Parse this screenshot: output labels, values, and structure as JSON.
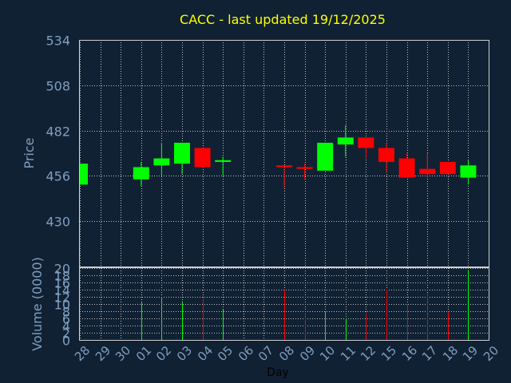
{
  "chart_data": {
    "type": "candlestick",
    "title": "CACC - last updated 19/12/2025",
    "ylabel_price": "Price",
    "ylabel_volume": "Volume (0000)",
    "xlabel": "Day",
    "price_ylim": [
      404,
      534
    ],
    "price_ticks": [
      "534",
      "508",
      "482",
      "456",
      "430"
    ],
    "price_tick_values": [
      534,
      508,
      482,
      456,
      430
    ],
    "volume_ylim": [
      0,
      20
    ],
    "volume_ticks": [
      "20",
      "18",
      "16",
      "14",
      "12",
      "10",
      "8",
      "6",
      "4",
      "2",
      "0"
    ],
    "volume_tick_values": [
      20,
      18,
      16,
      14,
      12,
      10,
      8,
      6,
      4,
      2,
      0
    ],
    "x_labels": [
      "28",
      "29",
      "30",
      "01",
      "02",
      "03",
      "04",
      "05",
      "06",
      "07",
      "08",
      "09",
      "10",
      "11",
      "12",
      "15",
      "16",
      "17",
      "18",
      "19",
      "20"
    ],
    "colors": {
      "background": "#102133",
      "up": "#00ff00",
      "down": "#ff0000",
      "title": "#ffff00",
      "axis_text": "#7f9fbf",
      "grid": "#c0c0c0"
    },
    "candles": [
      {
        "day": "28",
        "open": 451,
        "close": 463,
        "high": 463,
        "low": 451
      },
      {
        "day": "01",
        "open": 454,
        "close": 461,
        "high": 464,
        "low": 450
      },
      {
        "day": "02",
        "open": 462,
        "close": 466,
        "high": 475,
        "low": 456
      },
      {
        "day": "03",
        "open": 463,
        "close": 475,
        "high": 475,
        "low": 457
      },
      {
        "day": "04",
        "open": 472,
        "close": 461,
        "high": 472,
        "low": 461
      },
      {
        "day": "05",
        "open": 464,
        "close": 465,
        "high": 467,
        "low": 456
      },
      {
        "day": "08",
        "open": 462,
        "close": 461,
        "high": 462,
        "low": 449
      },
      {
        "day": "09",
        "open": 461,
        "close": 460,
        "high": 463,
        "low": 454
      },
      {
        "day": "10",
        "open": 459,
        "close": 475,
        "high": 475,
        "low": 459
      },
      {
        "day": "11",
        "open": 474,
        "close": 478,
        "high": 485,
        "low": 467
      },
      {
        "day": "12",
        "open": 478,
        "close": 472,
        "high": 478,
        "low": 466
      },
      {
        "day": "15",
        "open": 472,
        "close": 464,
        "high": 475,
        "low": 458
      },
      {
        "day": "16",
        "open": 466,
        "close": 455,
        "high": 469,
        "low": 455
      },
      {
        "day": "17",
        "open": 460,
        "close": 457,
        "high": 469,
        "low": 455
      },
      {
        "day": "18",
        "open": 464,
        "close": 457,
        "high": 464,
        "low": 457
      },
      {
        "day": "19",
        "open": 455,
        "close": 462,
        "high": 465,
        "low": 451
      }
    ],
    "volume": [
      {
        "day": "01",
        "value": 10.5,
        "up": true
      },
      {
        "day": "02",
        "value": 12,
        "up": true
      },
      {
        "day": "03",
        "value": 10.5,
        "up": true
      },
      {
        "day": "04",
        "value": 11.5,
        "up": false
      },
      {
        "day": "05",
        "value": 8.5,
        "up": true
      },
      {
        "day": "08",
        "value": 14,
        "up": false
      },
      {
        "day": "09",
        "value": 7.5,
        "up": false
      },
      {
        "day": "10",
        "value": 8,
        "up": true
      },
      {
        "day": "11",
        "value": 6,
        "up": true
      },
      {
        "day": "12",
        "value": 7.5,
        "up": false
      },
      {
        "day": "15",
        "value": 14,
        "up": false
      },
      {
        "day": "16",
        "value": 10,
        "up": false
      },
      {
        "day": "17",
        "value": 13,
        "up": false
      },
      {
        "day": "18",
        "value": 8,
        "up": false
      },
      {
        "day": "19",
        "value": 19.5,
        "up": true
      }
    ]
  }
}
